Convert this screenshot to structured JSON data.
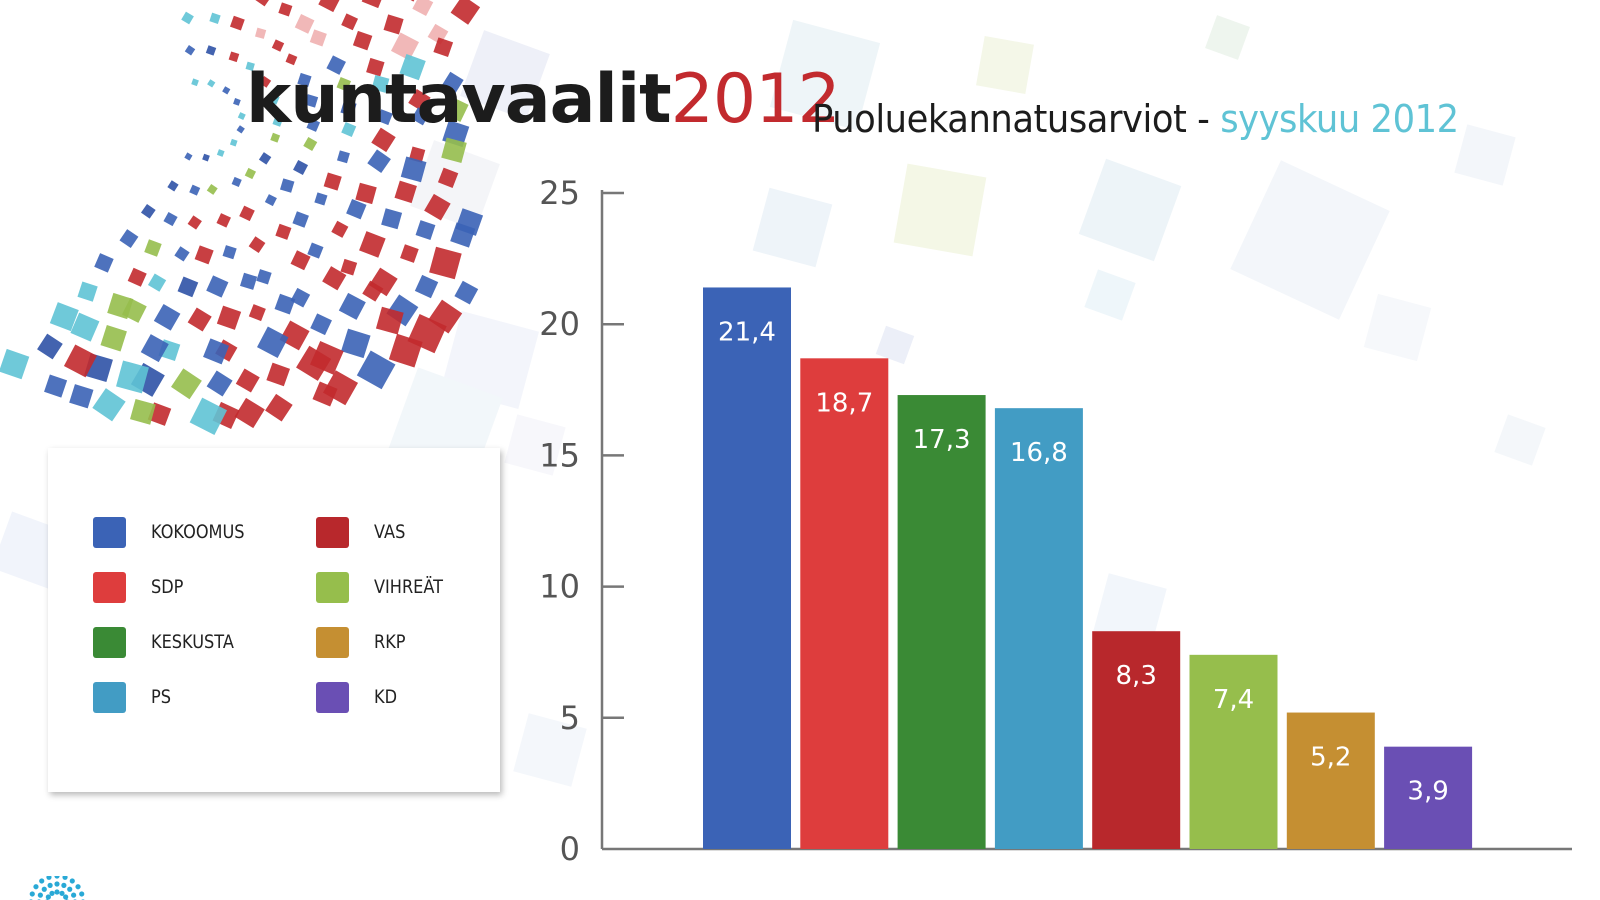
{
  "header": {
    "title_main": "kuntavaalit",
    "title_year": "2012",
    "subtitle_main": "Puoluekannatusarviot - ",
    "subtitle_date": "syyskuu 2012"
  },
  "colors": {
    "KOKOOMUS": "#3b63b6",
    "SDP": "#de3d3d",
    "KESKUSTA": "#3a8a35",
    "PS": "#429cc4",
    "VAS": "#b8282c",
    "VIHREÄT": "#96be4c",
    "RKP": "#c58f32",
    "KD": "#6a4fb4"
  },
  "legend": {
    "items": [
      "KOKOOMUS",
      "SDP",
      "KESKUSTA",
      "PS",
      "VAS",
      "VIHREÄT",
      "RKP",
      "KD"
    ]
  },
  "chart_data": {
    "type": "bar",
    "categories": [
      "KOKOOMUS",
      "SDP",
      "KESKUSTA",
      "PS",
      "VAS",
      "VIHREÄT",
      "RKP",
      "KD"
    ],
    "values": [
      21.4,
      18.7,
      17.3,
      16.8,
      8.3,
      7.4,
      5.2,
      3.9
    ],
    "value_labels": [
      "21,4",
      "18,7",
      "17,3",
      "16,8",
      "8,3",
      "7,4",
      "5,2",
      "3,9"
    ],
    "yticks": [
      0,
      5,
      10,
      15,
      20,
      25
    ],
    "ylim": [
      0,
      25
    ],
    "title": "",
    "xlabel": "",
    "ylabel": "",
    "grid": false,
    "legend_position": "left"
  }
}
